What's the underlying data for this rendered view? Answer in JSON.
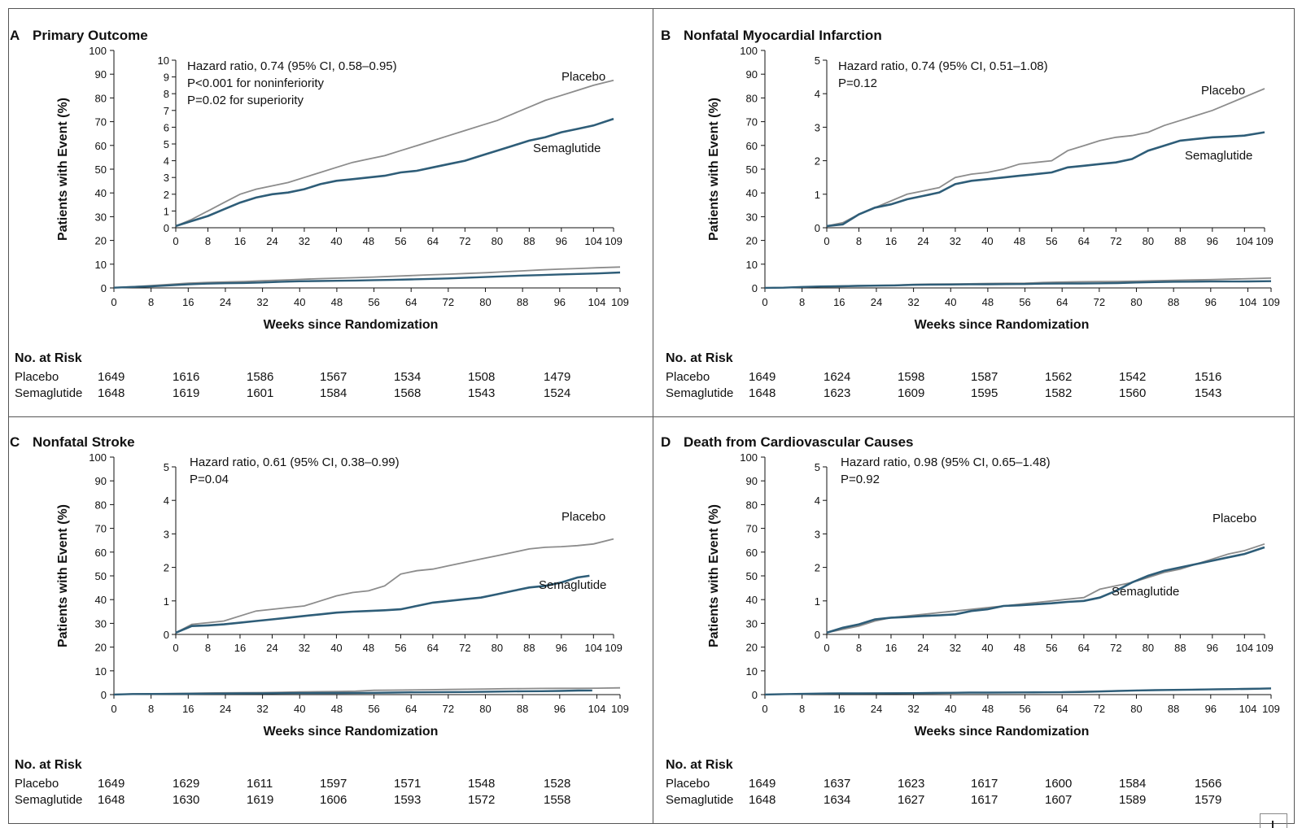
{
  "figure": {
    "panels": [
      {
        "letter": "A",
        "title": "Primary Outcome",
        "xlabel": "Weeks since Randomization",
        "ylabel": "Patients with Event (%)",
        "stats": [
          "Hazard ratio, 0.74 (95% CI, 0.58–0.95)",
          "P<0.001 for noninferiority",
          "P=0.02 for superiority"
        ],
        "risk_title": "No. at Risk",
        "risk": [
          {
            "name": "Placebo",
            "values": [
              "1649",
              "1616",
              "1586",
              "1567",
              "1534",
              "1508",
              "1479"
            ]
          },
          {
            "name": "Semaglutide",
            "values": [
              "1648",
              "1619",
              "1601",
              "1584",
              "1568",
              "1543",
              "1524"
            ]
          }
        ]
      },
      {
        "letter": "B",
        "title": "Nonfatal Myocardial Infarction",
        "xlabel": "Weeks since Randomization",
        "ylabel": "Patients with Event (%)",
        "stats": [
          "Hazard ratio, 0.74 (95% CI, 0.51–1.08)",
          "P=0.12"
        ],
        "risk_title": "No. at Risk",
        "risk": [
          {
            "name": "Placebo",
            "values": [
              "1649",
              "1624",
              "1598",
              "1587",
              "1562",
              "1542",
              "1516"
            ]
          },
          {
            "name": "Semaglutide",
            "values": [
              "1648",
              "1623",
              "1609",
              "1595",
              "1582",
              "1560",
              "1543"
            ]
          }
        ]
      },
      {
        "letter": "C",
        "title": "Nonfatal Stroke",
        "xlabel": "Weeks since Randomization",
        "ylabel": "Patients with Event (%)",
        "stats": [
          "Hazard ratio, 0.61 (95% CI, 0.38–0.99)",
          "P=0.04"
        ],
        "risk_title": "No. at Risk",
        "risk": [
          {
            "name": "Placebo",
            "values": [
              "1649",
              "1629",
              "1611",
              "1597",
              "1571",
              "1548",
              "1528"
            ]
          },
          {
            "name": "Semaglutide",
            "values": [
              "1648",
              "1630",
              "1619",
              "1606",
              "1593",
              "1572",
              "1558"
            ]
          }
        ]
      },
      {
        "letter": "D",
        "title": "Death from Cardiovascular Causes",
        "xlabel": "Weeks since Randomization",
        "ylabel": "Patients with Event (%)",
        "stats": [
          "Hazard ratio, 0.98 (95% CI, 0.65–1.48)",
          "P=0.92"
        ],
        "risk_title": "No. at Risk",
        "risk": [
          {
            "name": "Placebo",
            "values": [
              "1649",
              "1637",
              "1623",
              "1617",
              "1600",
              "1584",
              "1566"
            ]
          },
          {
            "name": "Semaglutide",
            "values": [
              "1648",
              "1634",
              "1627",
              "1617",
              "1607",
              "1589",
              "1579"
            ]
          }
        ]
      }
    ]
  },
  "chart_data": [
    {
      "type": "line",
      "title": "Primary Outcome",
      "xlabel": "Weeks since Randomization",
      "ylabel": "Patients with Event (%)",
      "xticks": [
        "0",
        "8",
        "16",
        "24",
        "32",
        "40",
        "48",
        "56",
        "64",
        "72",
        "80",
        "88",
        "96",
        "104",
        "109"
      ],
      "xlim": [
        0,
        109
      ],
      "ylim": [
        0,
        100
      ],
      "yticks": [
        0,
        10,
        20,
        30,
        40,
        50,
        60,
        70,
        80,
        90,
        100
      ],
      "inset": {
        "ylim": [
          0,
          10
        ],
        "yticks": [
          0,
          1,
          2,
          3,
          4,
          5,
          6,
          7,
          8,
          9,
          10
        ]
      },
      "colors": {
        "Placebo": "#8c8c8c",
        "Semaglutide": "#2e5d78"
      },
      "series": [
        {
          "name": "Placebo",
          "x": [
            0,
            4,
            8,
            12,
            16,
            20,
            24,
            28,
            32,
            36,
            40,
            44,
            48,
            52,
            56,
            60,
            64,
            68,
            72,
            76,
            80,
            84,
            88,
            92,
            96,
            100,
            104,
            109
          ],
          "y": [
            0.1,
            0.5,
            1.0,
            1.5,
            2.0,
            2.3,
            2.5,
            2.7,
            3.0,
            3.3,
            3.6,
            3.9,
            4.1,
            4.3,
            4.6,
            4.9,
            5.2,
            5.5,
            5.8,
            6.1,
            6.4,
            6.8,
            7.2,
            7.6,
            7.9,
            8.2,
            8.5,
            8.8
          ]
        },
        {
          "name": "Semaglutide",
          "x": [
            0,
            4,
            8,
            12,
            16,
            20,
            24,
            28,
            32,
            36,
            40,
            44,
            48,
            52,
            56,
            60,
            64,
            68,
            72,
            76,
            80,
            84,
            88,
            92,
            96,
            100,
            104,
            109
          ],
          "y": [
            0.1,
            0.4,
            0.7,
            1.1,
            1.5,
            1.8,
            2.0,
            2.1,
            2.3,
            2.6,
            2.8,
            2.9,
            3.0,
            3.1,
            3.3,
            3.4,
            3.6,
            3.8,
            4.0,
            4.3,
            4.6,
            4.9,
            5.2,
            5.4,
            5.7,
            5.9,
            6.1,
            6.5
          ]
        }
      ]
    },
    {
      "type": "line",
      "title": "Nonfatal Myocardial Infarction",
      "xlabel": "Weeks since Randomization",
      "ylabel": "Patients with Event (%)",
      "xticks": [
        "0",
        "8",
        "16",
        "24",
        "32",
        "40",
        "48",
        "56",
        "64",
        "72",
        "80",
        "88",
        "96",
        "104",
        "109"
      ],
      "xlim": [
        0,
        109
      ],
      "ylim": [
        0,
        100
      ],
      "yticks": [
        0,
        10,
        20,
        30,
        40,
        50,
        60,
        70,
        80,
        90,
        100
      ],
      "inset": {
        "ylim": [
          0,
          5
        ],
        "yticks": [
          0,
          1,
          2,
          3,
          4,
          5
        ]
      },
      "colors": {
        "Placebo": "#8c8c8c",
        "Semaglutide": "#2e5d78"
      },
      "series": [
        {
          "name": "Placebo",
          "x": [
            0,
            4,
            8,
            12,
            16,
            20,
            24,
            28,
            32,
            36,
            40,
            44,
            48,
            52,
            56,
            60,
            64,
            68,
            72,
            76,
            80,
            84,
            88,
            92,
            96,
            100,
            104,
            109
          ],
          "y": [
            0.05,
            0.15,
            0.4,
            0.6,
            0.8,
            1.0,
            1.1,
            1.2,
            1.5,
            1.6,
            1.65,
            1.75,
            1.9,
            1.95,
            2.0,
            2.3,
            2.45,
            2.6,
            2.7,
            2.75,
            2.85,
            3.05,
            3.2,
            3.35,
            3.5,
            3.7,
            3.9,
            4.15
          ]
        },
        {
          "name": "Semaglutide",
          "x": [
            0,
            4,
            8,
            12,
            16,
            20,
            24,
            28,
            32,
            36,
            40,
            44,
            48,
            52,
            56,
            60,
            64,
            68,
            72,
            76,
            80,
            84,
            88,
            92,
            96,
            100,
            104,
            109
          ],
          "y": [
            0.05,
            0.1,
            0.4,
            0.6,
            0.7,
            0.85,
            0.95,
            1.05,
            1.3,
            1.4,
            1.45,
            1.5,
            1.55,
            1.6,
            1.65,
            1.8,
            1.85,
            1.9,
            1.95,
            2.05,
            2.3,
            2.45,
            2.6,
            2.65,
            2.7,
            2.72,
            2.75,
            2.85
          ]
        }
      ]
    },
    {
      "type": "line",
      "title": "Nonfatal Stroke",
      "xlabel": "Weeks since Randomization",
      "ylabel": "Patients with Event (%)",
      "xticks": [
        "0",
        "8",
        "16",
        "24",
        "32",
        "40",
        "48",
        "56",
        "64",
        "72",
        "80",
        "88",
        "96",
        "104",
        "109"
      ],
      "xlim": [
        0,
        109
      ],
      "ylim": [
        0,
        100
      ],
      "yticks": [
        0,
        10,
        20,
        30,
        40,
        50,
        60,
        70,
        80,
        90,
        100
      ],
      "inset": {
        "ylim": [
          0,
          5
        ],
        "yticks": [
          0,
          1,
          2,
          3,
          4,
          5
        ]
      },
      "colors": {
        "Placebo": "#8c8c8c",
        "Semaglutide": "#2e5d78"
      },
      "series": [
        {
          "name": "Placebo",
          "x": [
            0,
            4,
            8,
            12,
            16,
            20,
            24,
            28,
            32,
            36,
            40,
            44,
            48,
            52,
            56,
            60,
            64,
            68,
            72,
            76,
            80,
            84,
            88,
            92,
            96,
            100,
            104,
            109
          ],
          "y": [
            0.05,
            0.3,
            0.35,
            0.4,
            0.55,
            0.7,
            0.75,
            0.8,
            0.85,
            1.0,
            1.15,
            1.25,
            1.3,
            1.45,
            1.8,
            1.9,
            1.95,
            2.05,
            2.15,
            2.25,
            2.35,
            2.45,
            2.55,
            2.6,
            2.62,
            2.65,
            2.7,
            2.85
          ]
        },
        {
          "name": "Semaglutide",
          "x": [
            0,
            4,
            8,
            12,
            16,
            20,
            24,
            28,
            32,
            36,
            40,
            44,
            48,
            52,
            56,
            60,
            64,
            68,
            72,
            76,
            80,
            84,
            88,
            92,
            96,
            100,
            103
          ],
          "y": [
            0.05,
            0.25,
            0.27,
            0.3,
            0.35,
            0.4,
            0.45,
            0.5,
            0.55,
            0.6,
            0.65,
            0.68,
            0.7,
            0.72,
            0.75,
            0.85,
            0.95,
            1.0,
            1.05,
            1.1,
            1.2,
            1.3,
            1.4,
            1.45,
            1.55,
            1.7,
            1.75
          ]
        }
      ]
    },
    {
      "type": "line",
      "title": "Death from Cardiovascular Causes",
      "xlabel": "Weeks since Randomization",
      "ylabel": "Patients with Event (%)",
      "xticks": [
        "0",
        "8",
        "16",
        "24",
        "32",
        "40",
        "48",
        "56",
        "64",
        "72",
        "80",
        "88",
        "96",
        "104",
        "109"
      ],
      "xlim": [
        0,
        109
      ],
      "ylim": [
        0,
        100
      ],
      "yticks": [
        0,
        10,
        20,
        30,
        40,
        50,
        60,
        70,
        80,
        90,
        100
      ],
      "inset": {
        "ylim": [
          0,
          5
        ],
        "yticks": [
          0,
          1,
          2,
          3,
          4,
          5
        ]
      },
      "colors": {
        "Placebo": "#8c8c8c",
        "Semaglutide": "#2e5d78"
      },
      "series": [
        {
          "name": "Placebo",
          "x": [
            0,
            4,
            8,
            12,
            16,
            20,
            24,
            28,
            32,
            36,
            40,
            44,
            48,
            52,
            56,
            60,
            64,
            68,
            72,
            76,
            80,
            84,
            88,
            92,
            96,
            100,
            104,
            109
          ],
          "y": [
            0.05,
            0.15,
            0.25,
            0.4,
            0.5,
            0.55,
            0.6,
            0.65,
            0.7,
            0.75,
            0.8,
            0.85,
            0.9,
            0.95,
            1.0,
            1.05,
            1.1,
            1.35,
            1.45,
            1.55,
            1.7,
            1.85,
            1.95,
            2.1,
            2.25,
            2.4,
            2.5,
            2.7
          ]
        },
        {
          "name": "Semaglutide",
          "x": [
            0,
            4,
            8,
            12,
            16,
            20,
            24,
            28,
            32,
            36,
            40,
            44,
            48,
            52,
            56,
            60,
            64,
            68,
            72,
            76,
            80,
            84,
            88,
            92,
            96,
            100,
            104,
            109
          ],
          "y": [
            0.05,
            0.2,
            0.3,
            0.45,
            0.5,
            0.52,
            0.55,
            0.57,
            0.6,
            0.7,
            0.75,
            0.85,
            0.87,
            0.9,
            0.93,
            0.97,
            1.0,
            1.1,
            1.3,
            1.55,
            1.75,
            1.9,
            2.0,
            2.1,
            2.2,
            2.3,
            2.4,
            2.6
          ]
        }
      ]
    }
  ]
}
